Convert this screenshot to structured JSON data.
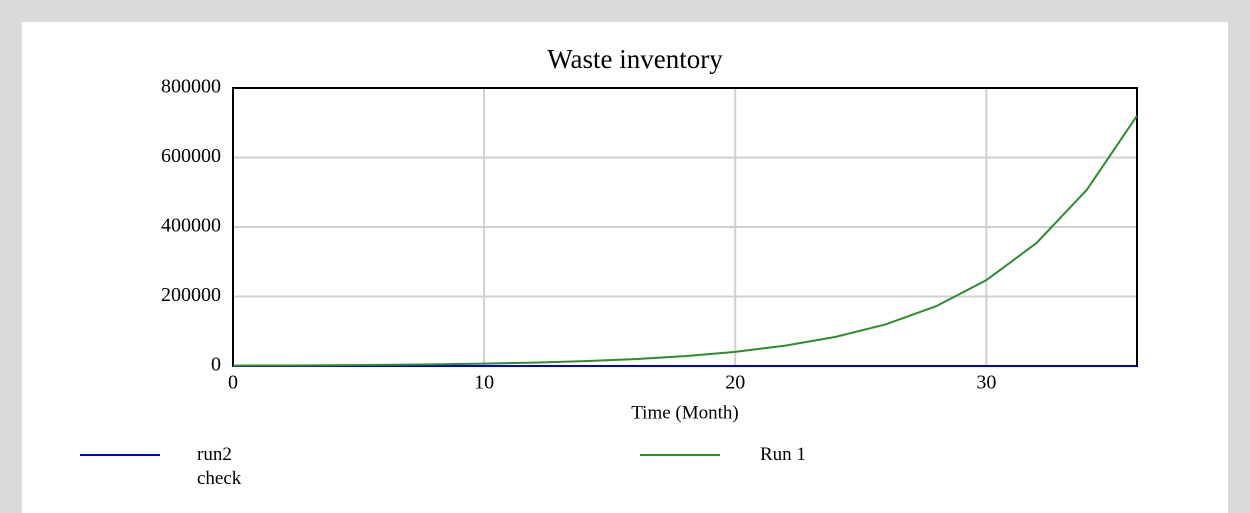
{
  "chart_data": {
    "type": "line",
    "title": "Waste inventory",
    "x_label": "Time (Month)",
    "x": [
      0,
      2,
      4,
      6,
      8,
      10,
      12,
      14,
      16,
      18,
      20,
      22,
      24,
      26,
      28,
      30,
      32,
      34,
      36
    ],
    "series": [
      {
        "name": "run2 check",
        "color": "#0000cc",
        "values": [
          0,
          0,
          0,
          0,
          0,
          0,
          0,
          0,
          0,
          0,
          0,
          0,
          0,
          0,
          0,
          0,
          0,
          0,
          0
        ]
      },
      {
        "name": "Run 1",
        "color": "#2e8b2e",
        "values": [
          1100,
          1600,
          2300,
          3300,
          4700,
          6700,
          9700,
          13900,
          19900,
          28500,
          40800,
          58500,
          83900,
          120000,
          172000,
          247000,
          354000,
          507000,
          720000
        ]
      }
    ],
    "xlim": [
      0,
      36
    ],
    "xticks": [
      0,
      10,
      20,
      30
    ],
    "ylim": [
      0,
      800000
    ],
    "yticks": [
      0,
      200000,
      400000,
      600000,
      800000
    ],
    "grid": true
  }
}
